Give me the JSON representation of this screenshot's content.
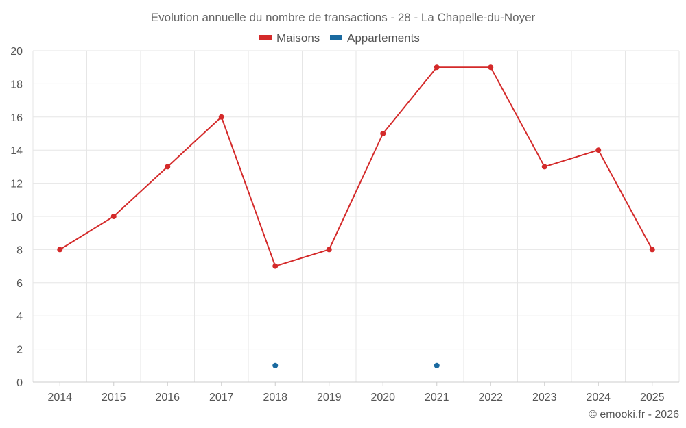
{
  "chart_data": {
    "type": "line",
    "title": "Evolution annuelle du nombre de transactions - 28 - La Chapelle-du-Noyer",
    "categories": [
      "2014",
      "2015",
      "2016",
      "2017",
      "2018",
      "2019",
      "2020",
      "2021",
      "2022",
      "2023",
      "2024",
      "2025"
    ],
    "series": [
      {
        "name": "Maisons",
        "color": "#d42a2a",
        "values": [
          8,
          10,
          13,
          16,
          7,
          8,
          15,
          19,
          19,
          13,
          14,
          8
        ]
      },
      {
        "name": "Appartements",
        "color": "#1a6aa0",
        "values": [
          null,
          null,
          null,
          null,
          1,
          null,
          null,
          1,
          null,
          null,
          null,
          null
        ]
      }
    ],
    "ylim": [
      0,
      20
    ],
    "yticks": [
      0,
      2,
      4,
      6,
      8,
      10,
      12,
      14,
      16,
      18,
      20
    ],
    "grid": true,
    "legend": "top-center",
    "xlabel": "",
    "ylabel": ""
  },
  "credit": "© emooki.fr - 2026"
}
